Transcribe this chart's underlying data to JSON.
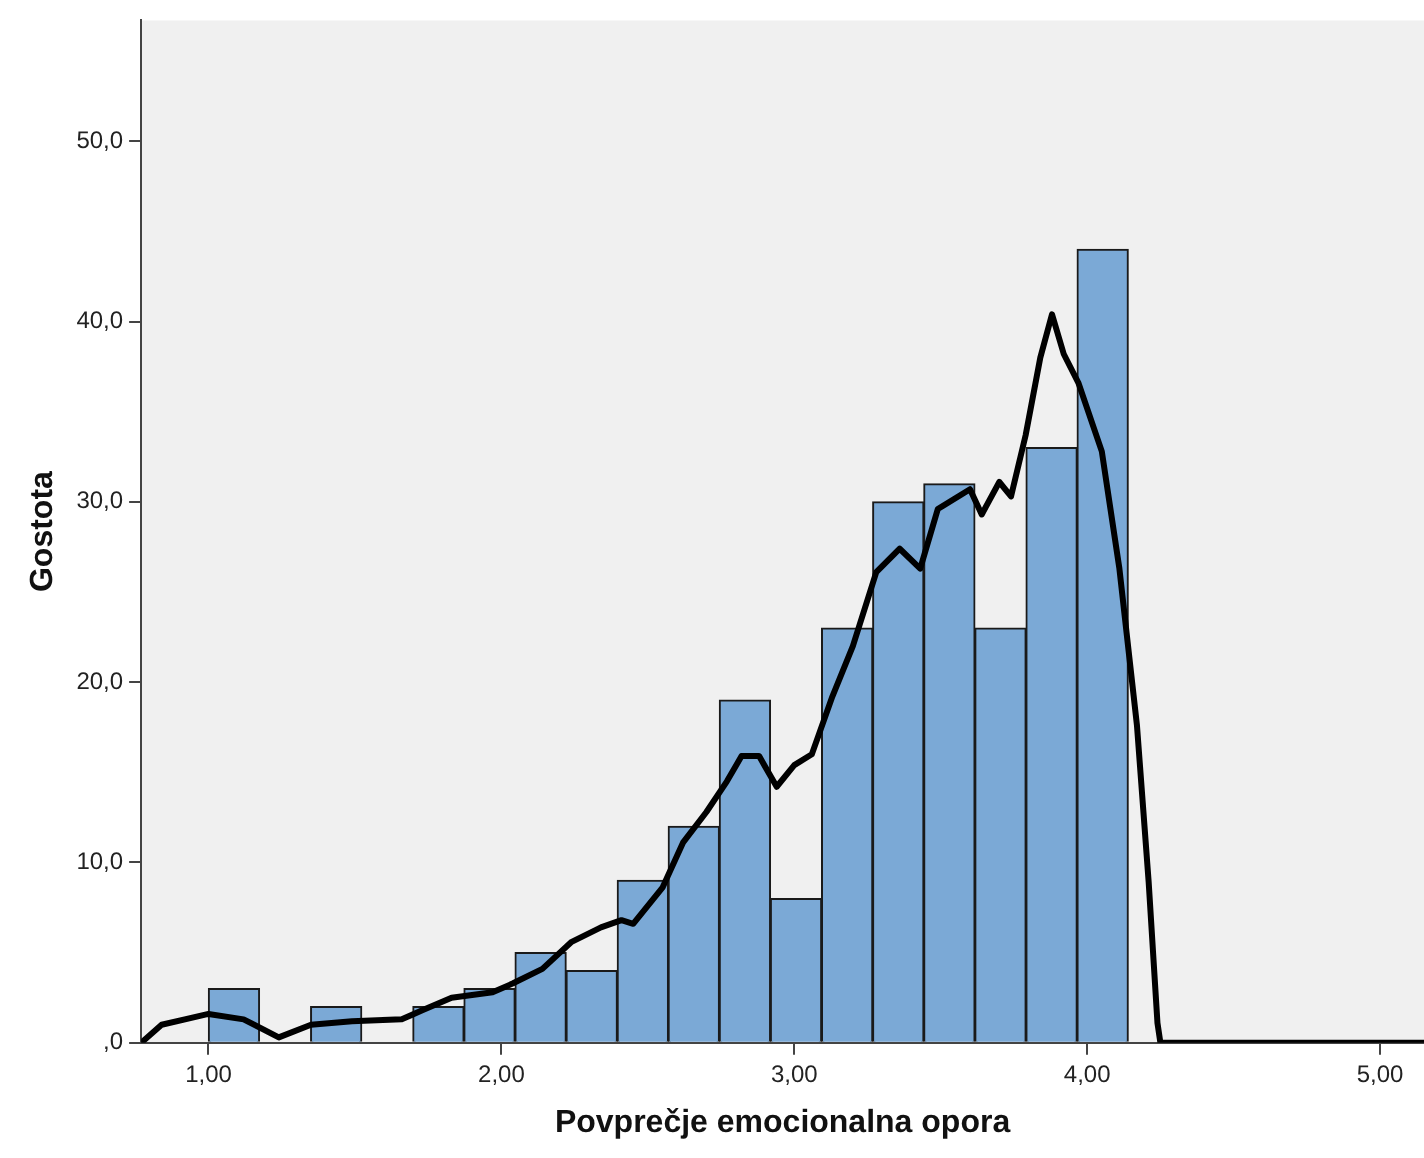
{
  "chart_data": {
    "type": "histogram",
    "xlabel": "Povprečje emocionalna opora",
    "ylabel": "Gostota",
    "bins": [
      1.0,
      1.174,
      1.349,
      1.523,
      1.698,
      1.872,
      2.047,
      2.221,
      2.396,
      2.57,
      2.744,
      2.919,
      3.093,
      3.268,
      3.442,
      3.617,
      3.791,
      3.966,
      4.14
    ],
    "values": [
      3,
      0,
      2,
      0,
      2,
      3,
      5,
      4,
      9,
      12,
      19,
      8,
      23,
      30,
      31,
      23,
      33,
      44
    ],
    "color": "#7ba9d6",
    "series": [
      {
        "type": "line",
        "color": "#000000",
        "x": [
          0.77,
          0.84,
          1.0,
          1.12,
          1.24,
          1.35,
          1.49,
          1.66,
          1.73,
          1.83,
          1.97,
          2.04,
          2.14,
          2.24,
          2.34,
          2.41,
          2.45,
          2.55,
          2.62,
          2.7,
          2.77,
          2.82,
          2.88,
          2.94,
          3.0,
          3.06,
          3.13,
          3.2,
          3.28,
          3.36,
          3.43,
          3.49,
          3.6,
          3.64,
          3.7,
          3.74,
          3.79,
          3.84,
          3.88,
          3.92,
          3.97,
          4.05,
          4.11,
          4.17,
          4.21,
          4.24,
          4.25,
          5.15
        ],
        "values": [
          0,
          1.0,
          1.6,
          1.3,
          0.3,
          1.0,
          1.2,
          1.3,
          1.8,
          2.5,
          2.8,
          3.3,
          4.1,
          5.6,
          6.4,
          6.8,
          6.6,
          8.6,
          11.1,
          12.8,
          14.5,
          15.9,
          15.9,
          14.2,
          15.4,
          16.0,
          19.2,
          22.0,
          26.1,
          27.4,
          26.3,
          29.6,
          30.7,
          29.3,
          31.1,
          30.3,
          33.7,
          38.0,
          40.4,
          38.2,
          36.6,
          32.8,
          26.3,
          17.6,
          8.9,
          1.1,
          0,
          0
        ]
      }
    ],
    "xlim": [
      0.77,
      5.15
    ],
    "ylim": [
      0,
      56.7
    ],
    "xticks": [
      {
        "value": 1,
        "label": "1,00"
      },
      {
        "value": 2,
        "label": "2,00"
      },
      {
        "value": 3,
        "label": "3,00"
      },
      {
        "value": 4,
        "label": "4,00"
      },
      {
        "value": 5,
        "label": "5,00"
      }
    ],
    "yticks": [
      {
        "value": 0,
        "label": ",0"
      },
      {
        "value": 10,
        "label": "10,0"
      },
      {
        "value": 20,
        "label": "20,0"
      },
      {
        "value": 30,
        "label": "30,0"
      },
      {
        "value": 40,
        "label": "40,0"
      },
      {
        "value": 50,
        "label": "50,0"
      }
    ],
    "grid": false,
    "legend": false
  }
}
